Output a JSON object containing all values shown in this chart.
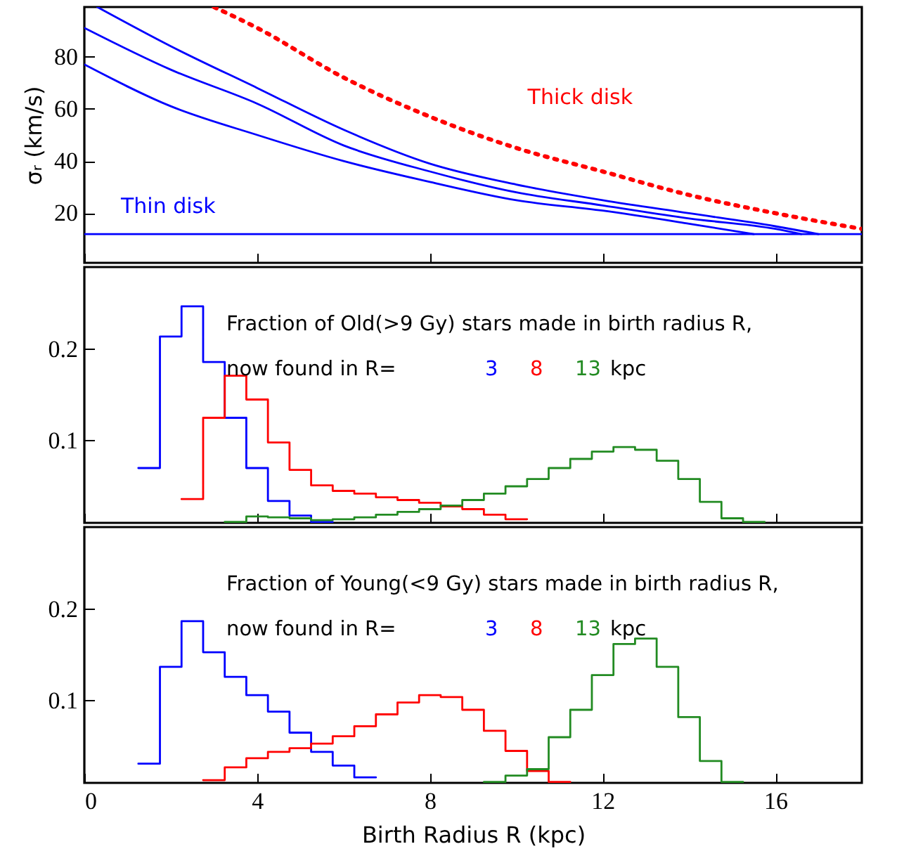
{
  "chart_data": [
    {
      "type": "line",
      "ylabel": "σᵣ (km/s)",
      "xlim": [
        0,
        18
      ],
      "xticks": [
        0,
        4,
        8,
        12,
        16
      ],
      "ylim": [
        1,
        99
      ],
      "yticks": [
        20,
        40,
        60,
        80
      ],
      "tick_labels": "y",
      "series": [
        {
          "name": "Thin disk",
          "color": "#0000ff",
          "x": [
            0,
            18
          ],
          "values": [
            12,
            12
          ]
        },
        {
          "color": "#0000ff",
          "x": [
            0.3,
            2,
            4,
            6,
            8,
            10,
            12,
            14,
            16,
            17
          ],
          "values": [
            99,
            84,
            68,
            52,
            39,
            31,
            25,
            20,
            15,
            12
          ]
        },
        {
          "color": "#0000ff",
          "x": [
            0,
            2,
            4,
            6,
            8,
            10,
            12,
            14,
            16,
            16.6
          ],
          "values": [
            91,
            75,
            62,
            46,
            36,
            28,
            23,
            18,
            14,
            12
          ]
        },
        {
          "color": "#0000ff",
          "x": [
            0,
            2,
            4,
            6,
            8,
            10,
            12,
            14,
            15.5
          ],
          "values": [
            77,
            61,
            50,
            40,
            32,
            25,
            21,
            16,
            12
          ]
        },
        {
          "name": "Thick disk",
          "color": "#ff0000",
          "line_style": "dotted",
          "x": [
            3,
            4,
            6,
            8,
            10,
            12,
            14,
            16,
            18
          ],
          "values": [
            99,
            91,
            72,
            57,
            45,
            36,
            27,
            20,
            14
          ]
        }
      ]
    },
    {
      "type": "step",
      "xlim": [
        0,
        18
      ],
      "xticks": [
        0,
        4,
        8,
        12,
        16
      ],
      "ylim": [
        0.01,
        0.29
      ],
      "yticks": [
        0.1,
        0.2
      ],
      "tick_labels": "y",
      "annotations": [
        "Fraction of Old(>9 Gy) stars made in birth radius R,",
        "now found in R=",
        "kpc"
      ],
      "series": [
        {
          "name": "3",
          "color": "#0000ff",
          "x": [
            1.25,
            1.75,
            2.25,
            2.75,
            3.25,
            3.75,
            4.25,
            4.75,
            5.25,
            5.75
          ],
          "values": [
            0.07,
            0.214,
            0.247,
            0.186,
            0.125,
            0.07,
            0.034,
            0.018,
            0.011,
            0.011
          ]
        },
        {
          "name": "8",
          "color": "#ff0000",
          "x": [
            2.25,
            2.75,
            3.25,
            3.75,
            4.25,
            4.75,
            5.25,
            5.75,
            6.25,
            6.75,
            7.25,
            7.75,
            8.25,
            8.75,
            9.25,
            9.75,
            10.25
          ],
          "values": [
            0.036,
            0.125,
            0.171,
            0.145,
            0.098,
            0.068,
            0.051,
            0.045,
            0.042,
            0.038,
            0.035,
            0.032,
            0.028,
            0.025,
            0.019,
            0.014,
            0.014
          ]
        },
        {
          "name": "13",
          "color": "#228b22",
          "x": [
            3.25,
            3.75,
            4.25,
            4.75,
            5.25,
            5.75,
            6.25,
            6.75,
            7.25,
            7.75,
            8.25,
            8.75,
            9.25,
            9.75,
            10.25,
            10.75,
            11.25,
            11.75,
            12.25,
            12.75,
            13.25,
            13.75,
            14.25,
            14.75,
            15.25,
            15.75
          ],
          "values": [
            0.011,
            0.017,
            0.016,
            0.015,
            0.013,
            0.014,
            0.016,
            0.019,
            0.022,
            0.025,
            0.029,
            0.035,
            0.042,
            0.05,
            0.058,
            0.07,
            0.08,
            0.088,
            0.093,
            0.09,
            0.078,
            0.058,
            0.033,
            0.015,
            0.011,
            0.011
          ]
        }
      ]
    },
    {
      "type": "step",
      "xlabel": "Birth Radius R (kpc)",
      "xlim": [
        0,
        18
      ],
      "xticks": [
        0,
        4,
        8,
        12,
        16
      ],
      "ylim": [
        0.01,
        0.29
      ],
      "yticks": [
        0.1,
        0.2
      ],
      "annotations": [
        "Fraction of Young(<9 Gy) stars made in birth radius R,",
        "now found in R=",
        "kpc"
      ],
      "series": [
        {
          "name": "3",
          "color": "#0000ff",
          "x": [
            1.25,
            1.75,
            2.25,
            2.75,
            3.25,
            3.75,
            4.25,
            4.75,
            5.25,
            5.75,
            6.25,
            6.75
          ],
          "values": [
            0.031,
            0.137,
            0.187,
            0.153,
            0.126,
            0.106,
            0.088,
            0.065,
            0.044,
            0.029,
            0.016,
            0.016
          ]
        },
        {
          "name": "8",
          "color": "#ff0000",
          "x": [
            2.75,
            3.25,
            3.75,
            4.25,
            4.75,
            5.25,
            5.75,
            6.25,
            6.75,
            7.25,
            7.75,
            8.25,
            8.75,
            9.25,
            9.75,
            10.25,
            10.75,
            11.25
          ],
          "values": [
            0.013,
            0.027,
            0.037,
            0.044,
            0.048,
            0.053,
            0.061,
            0.072,
            0.085,
            0.098,
            0.106,
            0.104,
            0.09,
            0.067,
            0.045,
            0.023,
            0.011,
            0.011
          ]
        },
        {
          "name": "13",
          "color": "#228b22",
          "x": [
            9.25,
            9.75,
            10.25,
            10.75,
            11.25,
            11.75,
            12.25,
            12.75,
            13.25,
            13.75,
            14.25,
            14.75,
            15.25
          ],
          "values": [
            0.011,
            0.018,
            0.025,
            0.06,
            0.09,
            0.128,
            0.162,
            0.168,
            0.137,
            0.082,
            0.034,
            0.011,
            0.011
          ]
        }
      ]
    }
  ]
}
